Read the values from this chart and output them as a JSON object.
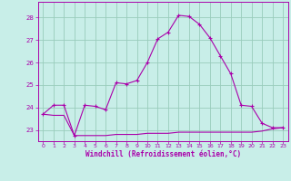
{
  "xlabel": "Windchill (Refroidissement éolien,°C)",
  "xlim": [
    -0.5,
    23.5
  ],
  "ylim": [
    22.5,
    28.7
  ],
  "yticks": [
    23,
    24,
    25,
    26,
    27,
    28
  ],
  "xticks": [
    0,
    1,
    2,
    3,
    4,
    5,
    6,
    7,
    8,
    9,
    10,
    11,
    12,
    13,
    14,
    15,
    16,
    17,
    18,
    19,
    20,
    21,
    22,
    23
  ],
  "background_color": "#c8eee8",
  "line_color": "#aa00aa",
  "grid_color": "#99ccbb",
  "line1_x": [
    0,
    1,
    2,
    3,
    4,
    5,
    6,
    7,
    8,
    9,
    10,
    11,
    12,
    13,
    14,
    15,
    16,
    17,
    18,
    19,
    20,
    21,
    22,
    23
  ],
  "line1_y": [
    23.7,
    24.1,
    24.1,
    22.75,
    24.1,
    24.05,
    23.9,
    25.1,
    25.05,
    25.2,
    26.0,
    27.05,
    27.35,
    28.1,
    28.05,
    27.7,
    27.1,
    26.3,
    25.5,
    24.1,
    24.05,
    23.3,
    23.1,
    23.1
  ],
  "line2_x": [
    0,
    1,
    2,
    3,
    4,
    5,
    6,
    7,
    8,
    9,
    10,
    11,
    12,
    13,
    14,
    15,
    16,
    17,
    18,
    19,
    20,
    21,
    22,
    23
  ],
  "line2_y": [
    23.7,
    23.65,
    23.65,
    22.75,
    22.75,
    22.75,
    22.75,
    22.8,
    22.8,
    22.8,
    22.85,
    22.85,
    22.85,
    22.9,
    22.9,
    22.9,
    22.9,
    22.9,
    22.9,
    22.9,
    22.9,
    22.95,
    23.05,
    23.1
  ]
}
